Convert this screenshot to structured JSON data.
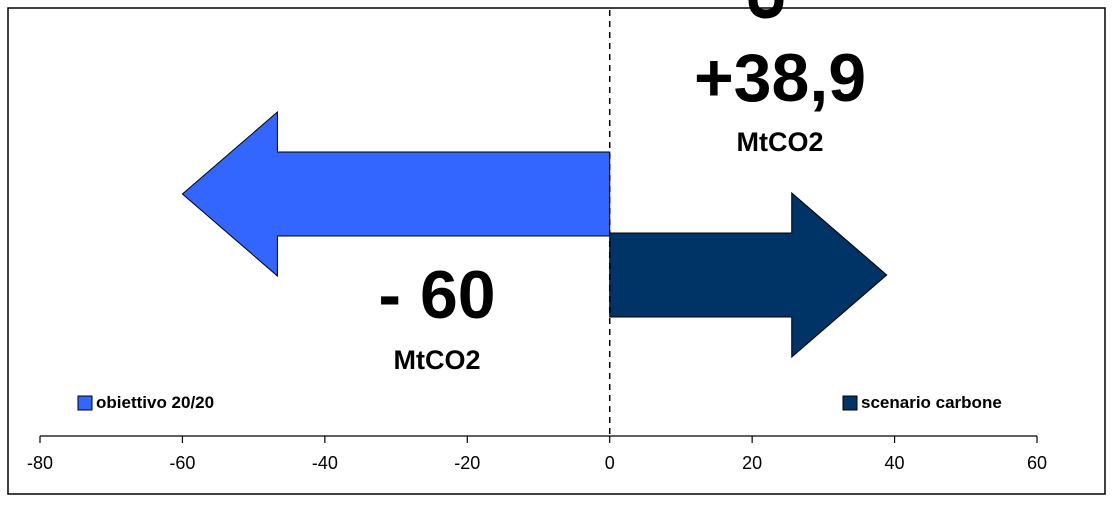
{
  "chart_data": {
    "type": "bar",
    "title": "",
    "xlabel": "",
    "ylabel": "",
    "xlim": [
      -80,
      60
    ],
    "x_ticks": [
      -80,
      -60,
      -40,
      -20,
      0,
      20,
      40,
      60
    ],
    "grid": false,
    "series": [
      {
        "name": "obiettivo 20/20",
        "value": -60,
        "color": "#3366FF",
        "value_label": "- 60",
        "unit_label": "MtCO2"
      },
      {
        "name": "scenario carbone",
        "value": 38.9,
        "color": "#003366",
        "value_label": "+38,9",
        "unit_label": "MtCO2"
      }
    ],
    "legend": [
      {
        "label": "obiettivo 20/20",
        "color": "#3366FF",
        "placement": "bottom-left"
      },
      {
        "label": "scenario carbone",
        "color": "#003366",
        "placement": "bottom-right"
      }
    ],
    "reference_line": {
      "x": 0,
      "style": "dashed"
    }
  }
}
